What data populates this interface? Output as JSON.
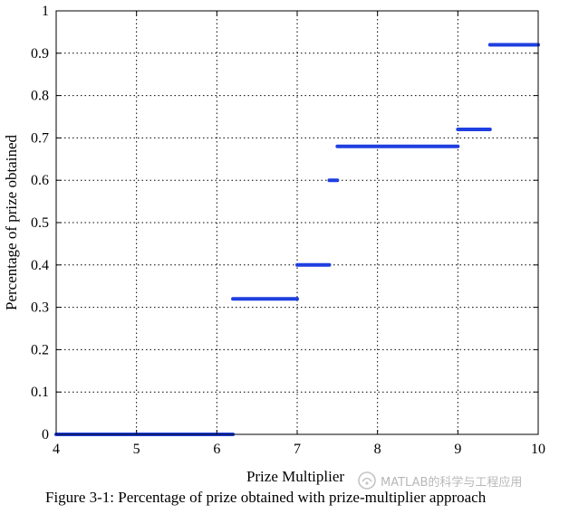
{
  "chart_data": {
    "type": "line",
    "title": "",
    "xlabel": "Prize Multiplier",
    "ylabel": "Percentage of prize obtained",
    "xlim": [
      4,
      10
    ],
    "ylim": [
      0,
      1
    ],
    "grid": true,
    "x_ticks": [
      "4",
      "5",
      "6",
      "7",
      "8",
      "9",
      "10"
    ],
    "y_ticks": [
      "0",
      "0.1",
      "0.2",
      "0.3",
      "0.4",
      "0.5",
      "0.6",
      "0.7",
      "0.8",
      "0.9",
      "1"
    ],
    "series": [
      {
        "color": "#1f3fe0",
        "segments": [
          {
            "x_start": 4.0,
            "x_end": 6.2,
            "y": 0.0
          },
          {
            "x_start": 6.2,
            "x_end": 7.0,
            "y": 0.32
          },
          {
            "x_start": 7.0,
            "x_end": 7.4,
            "y": 0.4
          },
          {
            "x_start": 7.4,
            "x_end": 7.5,
            "y": 0.6
          },
          {
            "x_start": 7.5,
            "x_end": 9.0,
            "y": 0.68
          },
          {
            "x_start": 9.0,
            "x_end": 9.4,
            "y": 0.72
          },
          {
            "x_start": 9.4,
            "x_end": 10.0,
            "y": 0.92
          }
        ]
      }
    ]
  },
  "caption": "Figure 3-1: Percentage of prize obtained with prize-multiplier approach",
  "watermark": "MATLAB的科学与工程应用"
}
